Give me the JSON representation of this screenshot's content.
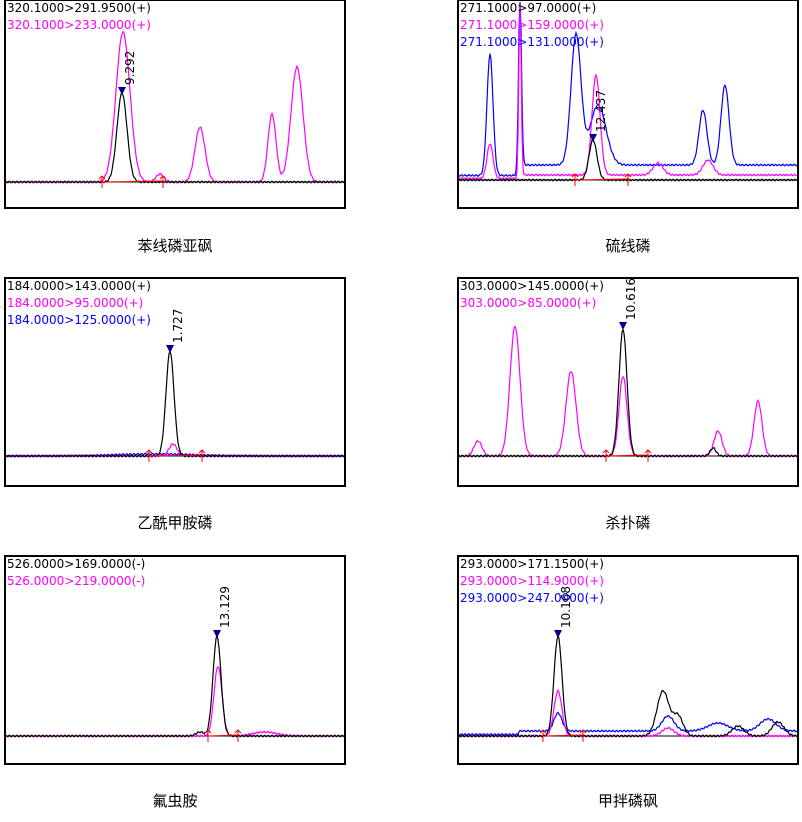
{
  "panels": [
    {
      "legend": [
        {
          "text": "320.1000>291.9500(+)",
          "color": "#000000"
        },
        {
          "text": "320.1000>233.0000(+)",
          "color": "#ff00ff"
        }
      ],
      "peak_label": "9.292",
      "caption": "苯线磷亚砜"
    },
    {
      "legend": [
        {
          "text": "271.1000>97.0000(+)",
          "color": "#000000"
        },
        {
          "text": "271.1000>159.0000(+)",
          "color": "#ff00ff"
        },
        {
          "text": "271.1000>131.0000(+)",
          "color": "#0000ff"
        }
      ],
      "peak_label": "12.437",
      "caption": "硫线磷"
    },
    {
      "legend": [
        {
          "text": "184.0000>143.0000(+)",
          "color": "#000000"
        },
        {
          "text": "184.0000>95.0000(+)",
          "color": "#ff00ff"
        },
        {
          "text": "184.0000>125.0000(+)",
          "color": "#0000ff"
        }
      ],
      "peak_label": "1.727",
      "caption": "乙酰甲胺磷"
    },
    {
      "legend": [
        {
          "text": "303.0000>145.0000(+)",
          "color": "#000000"
        },
        {
          "text": "303.0000>85.0000(+)",
          "color": "#ff00ff"
        }
      ],
      "peak_label": "10.616",
      "caption": "杀扑磷"
    },
    {
      "legend": [
        {
          "text": "526.0000>169.0000(-)",
          "color": "#000000"
        },
        {
          "text": "526.0000>219.0000(-)",
          "color": "#ff00ff"
        }
      ],
      "peak_label": "13.129",
      "caption": "氟虫胺"
    },
    {
      "legend": [
        {
          "text": "293.0000>171.1500(+)",
          "color": "#000000"
        },
        {
          "text": "293.0000>114.9000(+)",
          "color": "#ff00ff"
        },
        {
          "text": "293.0000>247.0000(+)",
          "color": "#0000ff"
        }
      ],
      "peak_label": "10.168",
      "caption": "甲拌磷砜"
    }
  ]
}
